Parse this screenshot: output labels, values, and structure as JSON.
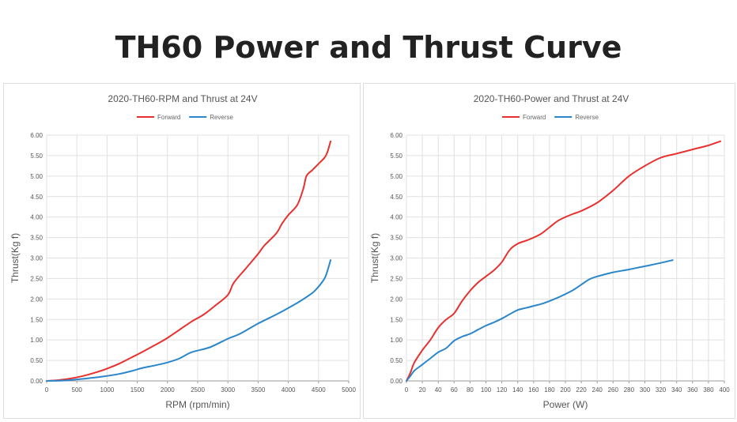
{
  "page": {
    "title": "TH60 Power and Thrust Curve"
  },
  "chart_data": [
    {
      "type": "line",
      "title": "2020-TH60-RPM and Thrust at 24V",
      "xlabel": "RPM (rpm/min)",
      "ylabel": "Thrust(Kg f)",
      "xlim": [
        0,
        5000
      ],
      "ylim": [
        0,
        6
      ],
      "xticks": [
        "0",
        "500",
        "1000",
        "1500",
        "2000",
        "2500",
        "3000",
        "3500",
        "4000",
        "4500",
        "5000"
      ],
      "yticks": [
        "0.00",
        "0.50",
        "1.00",
        "1.50",
        "2.00",
        "2.50",
        "3.00",
        "3.50",
        "4.00",
        "4.50",
        "5.00",
        "5.50",
        "6.00"
      ],
      "grid": true,
      "legend": "top-center",
      "series": [
        {
          "name": "Forward",
          "color": "#e8302e",
          "x": [
            0,
            200,
            400,
            600,
            800,
            1000,
            1200,
            1400,
            1600,
            1800,
            2000,
            2200,
            2400,
            2600,
            2800,
            3000,
            3100,
            3300,
            3500,
            3600,
            3800,
            3900,
            4000,
            4150,
            4250,
            4300,
            4400,
            4500,
            4600,
            4650,
            4700
          ],
          "y": [
            0,
            0.02,
            0.06,
            0.12,
            0.2,
            0.3,
            0.42,
            0.57,
            0.72,
            0.88,
            1.05,
            1.25,
            1.45,
            1.62,
            1.85,
            2.1,
            2.4,
            2.75,
            3.1,
            3.3,
            3.6,
            3.85,
            4.05,
            4.3,
            4.7,
            5.0,
            5.15,
            5.3,
            5.45,
            5.6,
            5.85
          ]
        },
        {
          "name": "Reverse",
          "color": "#2b86c9",
          "x": [
            0,
            300,
            600,
            900,
            1200,
            1400,
            1600,
            1800,
            2000,
            2200,
            2400,
            2700,
            3000,
            3200,
            3500,
            3800,
            4000,
            4200,
            4400,
            4500,
            4600,
            4650,
            4700
          ],
          "y": [
            0,
            0.01,
            0.05,
            0.1,
            0.17,
            0.24,
            0.32,
            0.38,
            0.45,
            0.55,
            0.7,
            0.82,
            1.03,
            1.15,
            1.4,
            1.62,
            1.78,
            1.95,
            2.15,
            2.3,
            2.5,
            2.7,
            2.95
          ]
        }
      ]
    },
    {
      "type": "line",
      "title": "2020-TH60-Power and Thrust at 24V",
      "xlabel": "Power (W)",
      "ylabel": "Thrust(Kg f)",
      "xlim": [
        0,
        400
      ],
      "ylim": [
        0,
        6
      ],
      "xticks": [
        "0",
        "20",
        "40",
        "60",
        "80",
        "100",
        "120",
        "140",
        "160",
        "180",
        "200",
        "220",
        "240",
        "260",
        "280",
        "300",
        "320",
        "340",
        "360",
        "380",
        "400"
      ],
      "yticks": [
        "0.00",
        "0.50",
        "1.00",
        "1.50",
        "2.00",
        "2.50",
        "3.00",
        "3.50",
        "4.00",
        "4.50",
        "5.00",
        "5.50",
        "6.00"
      ],
      "grid": true,
      "legend": "top-center",
      "series": [
        {
          "name": "Forward",
          "color": "#e8302e",
          "x": [
            0,
            5,
            10,
            20,
            30,
            40,
            50,
            60,
            70,
            80,
            90,
            100,
            110,
            120,
            130,
            140,
            150,
            160,
            170,
            180,
            190,
            200,
            210,
            220,
            240,
            260,
            280,
            300,
            320,
            340,
            360,
            380,
            395
          ],
          "y": [
            0,
            0.2,
            0.45,
            0.75,
            1.0,
            1.3,
            1.5,
            1.65,
            1.95,
            2.2,
            2.4,
            2.55,
            2.7,
            2.9,
            3.2,
            3.35,
            3.42,
            3.5,
            3.6,
            3.75,
            3.9,
            4.0,
            4.08,
            4.15,
            4.35,
            4.65,
            5.0,
            5.25,
            5.45,
            5.55,
            5.65,
            5.75,
            5.85
          ]
        },
        {
          "name": "Reverse",
          "color": "#2b86c9",
          "x": [
            0,
            5,
            10,
            20,
            30,
            40,
            50,
            60,
            70,
            80,
            90,
            100,
            110,
            120,
            130,
            140,
            150,
            160,
            170,
            180,
            190,
            200,
            210,
            220,
            230,
            240,
            260,
            280,
            300,
            320,
            335
          ],
          "y": [
            0,
            0.12,
            0.25,
            0.4,
            0.55,
            0.7,
            0.8,
            0.98,
            1.08,
            1.15,
            1.25,
            1.35,
            1.43,
            1.52,
            1.63,
            1.73,
            1.78,
            1.83,
            1.88,
            1.95,
            2.03,
            2.12,
            2.22,
            2.35,
            2.48,
            2.55,
            2.65,
            2.72,
            2.8,
            2.88,
            2.95
          ]
        }
      ]
    }
  ]
}
